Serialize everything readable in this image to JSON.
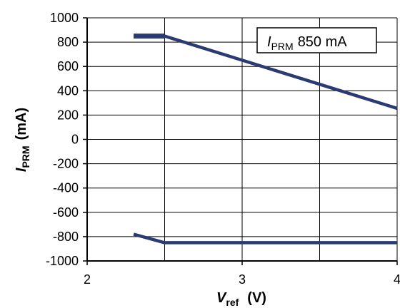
{
  "chart_data": {
    "type": "line",
    "xlim": [
      2,
      4
    ],
    "ylim": [
      -1000,
      1000
    ],
    "x_ticks": [
      2,
      3,
      4
    ],
    "y_ticks": [
      1000,
      800,
      600,
      400,
      200,
      0,
      -200,
      -400,
      -600,
      -800,
      -1000
    ],
    "x_minor_grid": [
      2.5,
      3.5
    ],
    "grid": true,
    "xlabel": {
      "main": "V",
      "sub": "ref",
      "unit": "(V)"
    },
    "ylabel": {
      "main": "I",
      "sub": "PRM",
      "unit": "(mA)"
    },
    "legend": {
      "main": "I",
      "sub": "PRM",
      "value": "850 mA",
      "placement": "top-right"
    },
    "line_color": "#2a3a73",
    "series": [
      {
        "x": [
          2.3,
          2.5,
          4.0
        ],
        "y": [
          850,
          850,
          255
        ]
      },
      {
        "x": [
          2.3,
          2.5,
          4.0
        ],
        "y": [
          -780,
          -850,
          -850
        ]
      }
    ]
  }
}
